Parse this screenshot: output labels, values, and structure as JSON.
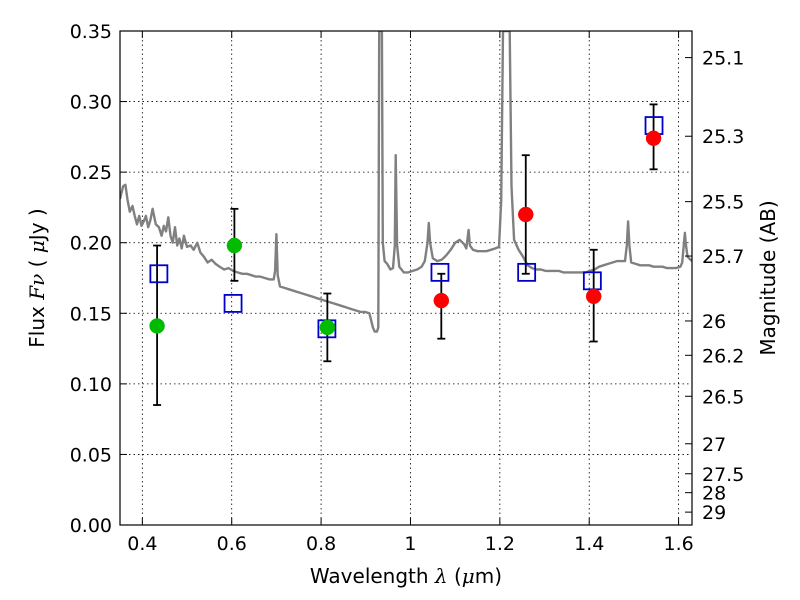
{
  "chart_data": {
    "type": "scatter",
    "xlabel": {
      "prefix": "Wavelength  ",
      "symbol": "λ",
      "unit_open": " (",
      "unit_mu": "μ",
      "unit_close": "m)"
    },
    "ylabel": {
      "prefix": "Flux  ",
      "symbol": "Fν",
      "unit_open": "  ( ",
      "unit_mu": "μ",
      "unit_close": "Jy )"
    },
    "y2label": "Magnitude (AB)",
    "xlim": [
      0.35,
      1.63
    ],
    "ylim": [
      0,
      0.35
    ],
    "x_ticks": [
      {
        "value": 0.4,
        "label": "0.4"
      },
      {
        "value": 0.6,
        "label": "0.6"
      },
      {
        "value": 0.8,
        "label": "0.8"
      },
      {
        "value": 1.0,
        "label": "1"
      },
      {
        "value": 1.2,
        "label": "1.2"
      },
      {
        "value": 1.4,
        "label": "1.4"
      },
      {
        "value": 1.6,
        "label": "1.6"
      }
    ],
    "y_ticks": [
      {
        "value": 0.0,
        "label": "0.00"
      },
      {
        "value": 0.05,
        "label": "0.05"
      },
      {
        "value": 0.1,
        "label": "0.10"
      },
      {
        "value": 0.15,
        "label": "0.15"
      },
      {
        "value": 0.2,
        "label": "0.20"
      },
      {
        "value": 0.25,
        "label": "0.25"
      },
      {
        "value": 0.3,
        "label": "0.30"
      },
      {
        "value": 0.35,
        "label": "0.35"
      }
    ],
    "y2_ticks": [
      {
        "value": 25.1,
        "label": "25.1"
      },
      {
        "value": 25.3,
        "label": "25.3"
      },
      {
        "value": 25.5,
        "label": "25.5"
      },
      {
        "value": 25.7,
        "label": "25.7"
      },
      {
        "value": 26.0,
        "label": "26"
      },
      {
        "value": 26.2,
        "label": "26.2"
      },
      {
        "value": 26.5,
        "label": "26.5"
      },
      {
        "value": 27.0,
        "label": "27"
      },
      {
        "value": 27.5,
        "label": "27.5"
      },
      {
        "value": 28.0,
        "label": "28"
      },
      {
        "value": 29.0,
        "label": "29"
      }
    ],
    "grid": true,
    "model_spectrum": {
      "color": "#808080",
      "points": [
        [
          0.35,
          0.231
        ],
        [
          0.357,
          0.24
        ],
        [
          0.362,
          0.241
        ],
        [
          0.367,
          0.23
        ],
        [
          0.372,
          0.222
        ],
        [
          0.378,
          0.226
        ],
        [
          0.383,
          0.219
        ],
        [
          0.388,
          0.213
        ],
        [
          0.393,
          0.219
        ],
        [
          0.398,
          0.212
        ],
        [
          0.403,
          0.215
        ],
        [
          0.408,
          0.219
        ],
        [
          0.413,
          0.211
        ],
        [
          0.418,
          0.216
        ],
        [
          0.423,
          0.224
        ],
        [
          0.43,
          0.213
        ],
        [
          0.437,
          0.211
        ],
        [
          0.443,
          0.205
        ],
        [
          0.448,
          0.212
        ],
        [
          0.453,
          0.208
        ],
        [
          0.458,
          0.218
        ],
        [
          0.463,
          0.205
        ],
        [
          0.468,
          0.2
        ],
        [
          0.473,
          0.211
        ],
        [
          0.478,
          0.198
        ],
        [
          0.483,
          0.203
        ],
        [
          0.488,
          0.196
        ],
        [
          0.493,
          0.205
        ],
        [
          0.5,
          0.197
        ],
        [
          0.508,
          0.198
        ],
        [
          0.515,
          0.195
        ],
        [
          0.523,
          0.2
        ],
        [
          0.53,
          0.193
        ],
        [
          0.538,
          0.19
        ],
        [
          0.546,
          0.186
        ],
        [
          0.555,
          0.188
        ],
        [
          0.564,
          0.185
        ],
        [
          0.573,
          0.183
        ],
        [
          0.583,
          0.181
        ],
        [
          0.593,
          0.182
        ],
        [
          0.603,
          0.18
        ],
        [
          0.613,
          0.179
        ],
        [
          0.624,
          0.178
        ],
        [
          0.634,
          0.178
        ],
        [
          0.644,
          0.177
        ],
        [
          0.654,
          0.176
        ],
        [
          0.664,
          0.176
        ],
        [
          0.674,
          0.175
        ],
        [
          0.684,
          0.174
        ],
        [
          0.694,
          0.174
        ],
        [
          0.697,
          0.18
        ],
        [
          0.7,
          0.206
        ],
        [
          0.703,
          0.177
        ],
        [
          0.708,
          0.169
        ],
        [
          0.718,
          0.168
        ],
        [
          0.728,
          0.167
        ],
        [
          0.738,
          0.166
        ],
        [
          0.748,
          0.165
        ],
        [
          0.758,
          0.164
        ],
        [
          0.768,
          0.163
        ],
        [
          0.778,
          0.162
        ],
        [
          0.788,
          0.161
        ],
        [
          0.798,
          0.16
        ],
        [
          0.808,
          0.159
        ],
        [
          0.818,
          0.158
        ],
        [
          0.828,
          0.157
        ],
        [
          0.838,
          0.156
        ],
        [
          0.848,
          0.155
        ],
        [
          0.858,
          0.154
        ],
        [
          0.868,
          0.153
        ],
        [
          0.878,
          0.152
        ],
        [
          0.888,
          0.151
        ],
        [
          0.898,
          0.151
        ],
        [
          0.908,
          0.15
        ],
        [
          0.916,
          0.14
        ],
        [
          0.92,
          0.137
        ],
        [
          0.925,
          0.137
        ],
        [
          0.928,
          0.14
        ],
        [
          0.93,
          0.35
        ],
        [
          0.936,
          0.35
        ],
        [
          0.938,
          0.2
        ],
        [
          0.942,
          0.187
        ],
        [
          0.948,
          0.185
        ],
        [
          0.955,
          0.181
        ],
        [
          0.961,
          0.182
        ],
        [
          0.965,
          0.198
        ],
        [
          0.967,
          0.262
        ],
        [
          0.97,
          0.198
        ],
        [
          0.975,
          0.183
        ],
        [
          0.985,
          0.179
        ],
        [
          0.995,
          0.179
        ],
        [
          1.005,
          0.18
        ],
        [
          1.015,
          0.181
        ],
        [
          1.025,
          0.183
        ],
        [
          1.032,
          0.187
        ],
        [
          1.038,
          0.2
        ],
        [
          1.041,
          0.214
        ],
        [
          1.044,
          0.2
        ],
        [
          1.05,
          0.189
        ],
        [
          1.06,
          0.187
        ],
        [
          1.07,
          0.188
        ],
        [
          1.08,
          0.191
        ],
        [
          1.09,
          0.195
        ],
        [
          1.1,
          0.2
        ],
        [
          1.11,
          0.202
        ],
        [
          1.12,
          0.199
        ],
        [
          1.125,
          0.196
        ],
        [
          1.13,
          0.209
        ],
        [
          1.133,
          0.198
        ],
        [
          1.14,
          0.195
        ],
        [
          1.15,
          0.194
        ],
        [
          1.16,
          0.194
        ],
        [
          1.17,
          0.194
        ],
        [
          1.18,
          0.195
        ],
        [
          1.19,
          0.196
        ],
        [
          1.198,
          0.197
        ],
        [
          1.203,
          0.23
        ],
        [
          1.207,
          0.35
        ],
        [
          1.222,
          0.35
        ],
        [
          1.226,
          0.24
        ],
        [
          1.232,
          0.202
        ],
        [
          1.242,
          0.195
        ],
        [
          1.252,
          0.19
        ],
        [
          1.262,
          0.184
        ],
        [
          1.272,
          0.182
        ],
        [
          1.282,
          0.181
        ],
        [
          1.292,
          0.181
        ],
        [
          1.302,
          0.18
        ],
        [
          1.312,
          0.18
        ],
        [
          1.322,
          0.18
        ],
        [
          1.332,
          0.18
        ],
        [
          1.342,
          0.179
        ],
        [
          1.352,
          0.179
        ],
        [
          1.362,
          0.179
        ],
        [
          1.372,
          0.179
        ],
        [
          1.382,
          0.179
        ],
        [
          1.392,
          0.179
        ],
        [
          1.402,
          0.18
        ],
        [
          1.412,
          0.181
        ],
        [
          1.422,
          0.183
        ],
        [
          1.432,
          0.184
        ],
        [
          1.442,
          0.185
        ],
        [
          1.452,
          0.186
        ],
        [
          1.462,
          0.187
        ],
        [
          1.472,
          0.187
        ],
        [
          1.48,
          0.187
        ],
        [
          1.484,
          0.198
        ],
        [
          1.487,
          0.215
        ],
        [
          1.49,
          0.198
        ],
        [
          1.494,
          0.186
        ],
        [
          1.504,
          0.185
        ],
        [
          1.514,
          0.184
        ],
        [
          1.524,
          0.184
        ],
        [
          1.534,
          0.184
        ],
        [
          1.544,
          0.183
        ],
        [
          1.554,
          0.183
        ],
        [
          1.564,
          0.183
        ],
        [
          1.574,
          0.182
        ],
        [
          1.584,
          0.182
        ],
        [
          1.594,
          0.182
        ],
        [
          1.604,
          0.183
        ],
        [
          1.608,
          0.186
        ],
        [
          1.612,
          0.2
        ],
        [
          1.614,
          0.207
        ],
        [
          1.616,
          0.2
        ],
        [
          1.62,
          0.19
        ],
        [
          1.63,
          0.187
        ]
      ]
    },
    "model_points": {
      "marker": "open-square",
      "color": "#0000cc",
      "points": [
        [
          0.437,
          0.178
        ],
        [
          0.603,
          0.157
        ],
        [
          0.813,
          0.139
        ],
        [
          1.066,
          0.179
        ],
        [
          1.26,
          0.179
        ],
        [
          1.407,
          0.173
        ],
        [
          1.545,
          0.283
        ]
      ]
    },
    "observed_points": [
      {
        "x": 0.433,
        "y": 0.141,
        "yerr_low": 0.085,
        "yerr_high": 0.198,
        "color": "#00bb00"
      },
      {
        "x": 0.606,
        "y": 0.198,
        "yerr_low": 0.173,
        "yerr_high": 0.224,
        "color": "#00bb00"
      },
      {
        "x": 0.814,
        "y": 0.14,
        "yerr_low": 0.116,
        "yerr_high": 0.164,
        "color": "#00bb00"
      },
      {
        "x": 1.069,
        "y": 0.159,
        "yerr_low": 0.132,
        "yerr_high": 0.178,
        "color": "#ff0000"
      },
      {
        "x": 1.258,
        "y": 0.22,
        "yerr_low": 0.178,
        "yerr_high": 0.262,
        "color": "#ff0000"
      },
      {
        "x": 1.41,
        "y": 0.162,
        "yerr_low": 0.13,
        "yerr_high": 0.195,
        "color": "#ff0000"
      },
      {
        "x": 1.544,
        "y": 0.274,
        "yerr_low": 0.252,
        "yerr_high": 0.298,
        "color": "#ff0000"
      }
    ]
  }
}
